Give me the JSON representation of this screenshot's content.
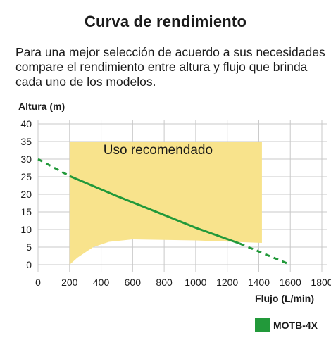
{
  "title": "Curva de rendimiento",
  "intro": "Para una mejor selección de acuerdo a sus necesidades compare el rendimiento entre altura y flujo que brinda cada uno de los modelos.",
  "chart_data": {
    "type": "line",
    "ylabel": "Altura (m)",
    "xlabel": "Flujo (L/min)",
    "xlim": [
      0,
      1800
    ],
    "ylim": [
      0,
      40
    ],
    "x_ticks": [
      0,
      200,
      400,
      600,
      800,
      1000,
      1200,
      1400,
      1600,
      1800
    ],
    "y_ticks": [
      0,
      5,
      10,
      15,
      20,
      25,
      30,
      35,
      40
    ],
    "grid": true,
    "recommended_zone": {
      "label": "Uso recomendado",
      "x_range": [
        200,
        1420
      ],
      "upper_y": 35,
      "lower_boundary": [
        [
          200,
          0
        ],
        [
          250,
          2
        ],
        [
          350,
          5
        ],
        [
          450,
          6.5
        ],
        [
          600,
          7.2
        ],
        [
          1000,
          6.9
        ],
        [
          1420,
          6.2
        ]
      ],
      "color": "#f8e38c"
    },
    "series": [
      {
        "name": "MOTB-4X",
        "color": "#22993a",
        "solid": [
          [
            200,
            25.2
          ],
          [
            500,
            19.5
          ],
          [
            1000,
            10.5
          ],
          [
            1280,
            6.0
          ]
        ],
        "dashed_segments": [
          [
            [
              0,
              30
            ],
            [
              200,
              25.2
            ]
          ],
          [
            [
              1280,
              6.0
            ],
            [
              1600,
              0
            ]
          ]
        ]
      }
    ]
  },
  "legend": {
    "label": "MOTB-4X",
    "color": "#22993a"
  }
}
